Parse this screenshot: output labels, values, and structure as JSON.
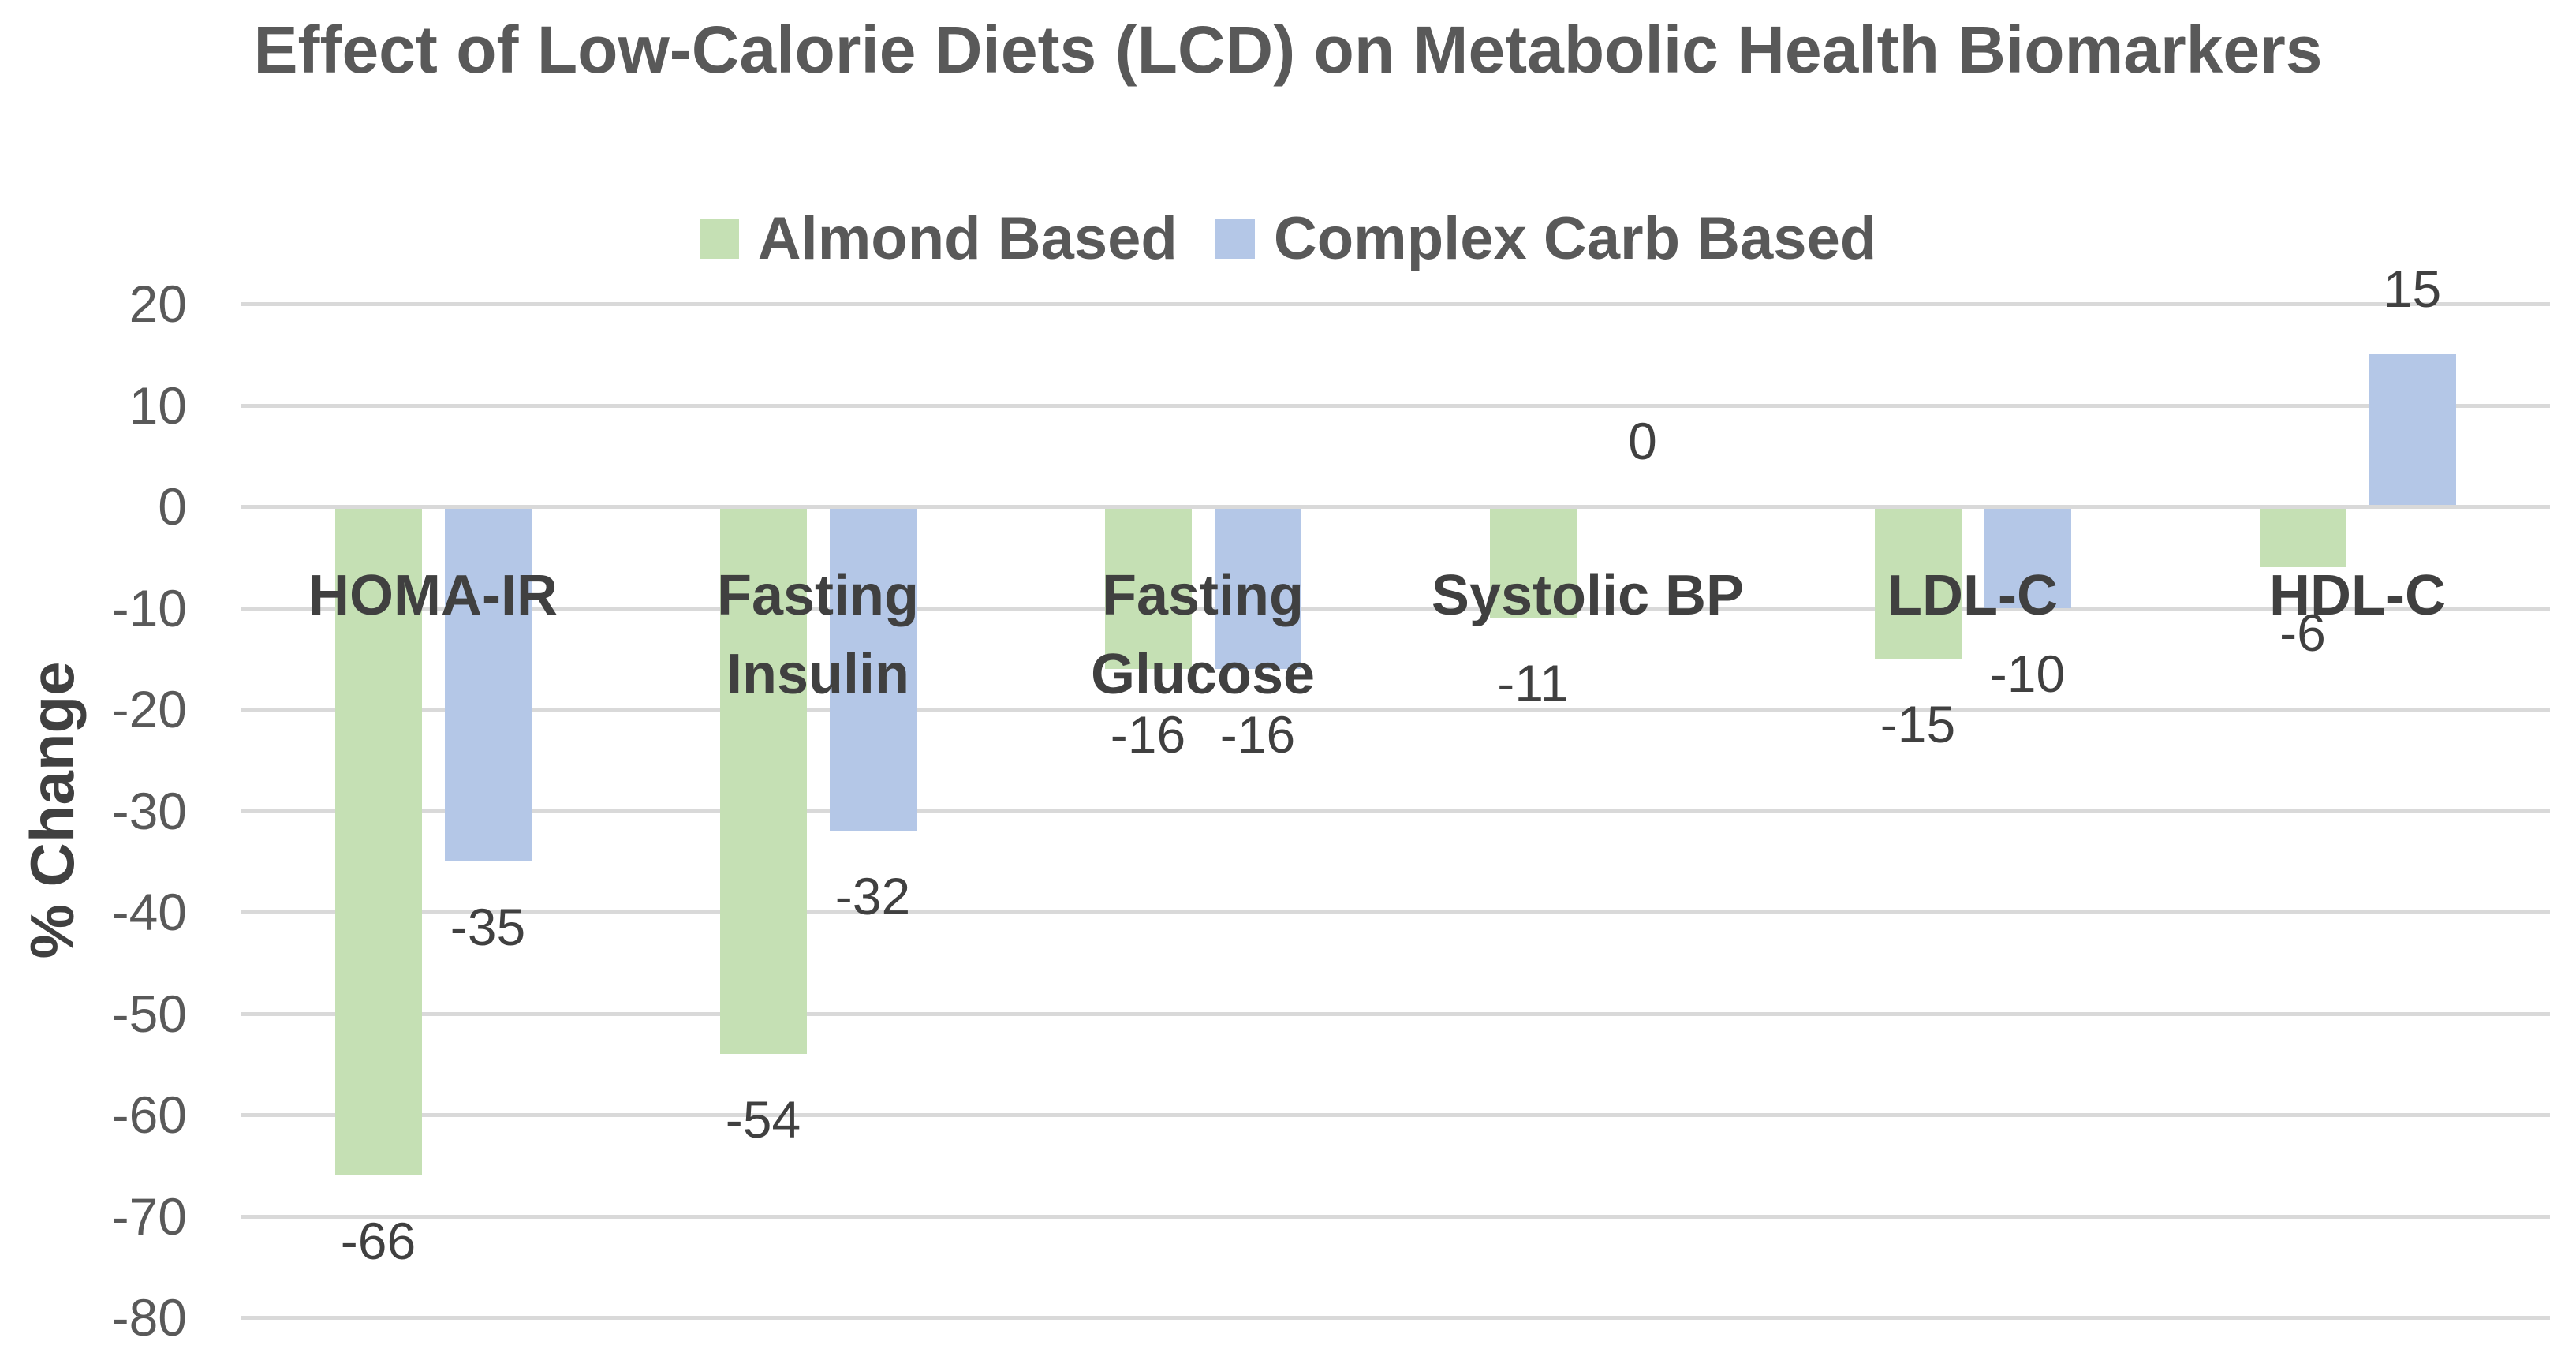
{
  "chart_data": {
    "type": "bar",
    "title": "Effect of Low-Calorie Diets (LCD) on Metabolic Health Biomarkers",
    "ylabel": "% Change",
    "xlabel": "",
    "categories": [
      "HOMA-IR",
      "Fasting Insulin",
      "Fasting Glucose",
      "Systolic BP",
      "LDL-C",
      "HDL-C"
    ],
    "series": [
      {
        "name": "Almond Based",
        "color": "#c5e0b4",
        "values": [
          -66,
          -54,
          -16,
          -11,
          -15,
          -6
        ]
      },
      {
        "name": "Complex Carb Based",
        "color": "#b4c7e7",
        "values": [
          -35,
          -32,
          -16,
          0,
          -10,
          15
        ]
      }
    ],
    "ylim": [
      -80,
      20
    ],
    "yticks": [
      20,
      10,
      0,
      -10,
      -20,
      -30,
      -40,
      -50,
      -60,
      -70,
      -80
    ],
    "grid": true,
    "legend_position": "top",
    "data_labels_shown": true
  },
  "colors": {
    "gridline": "#d9d9d9",
    "heading_text": "#595959",
    "label_text": "#404040",
    "background": "#ffffff"
  }
}
